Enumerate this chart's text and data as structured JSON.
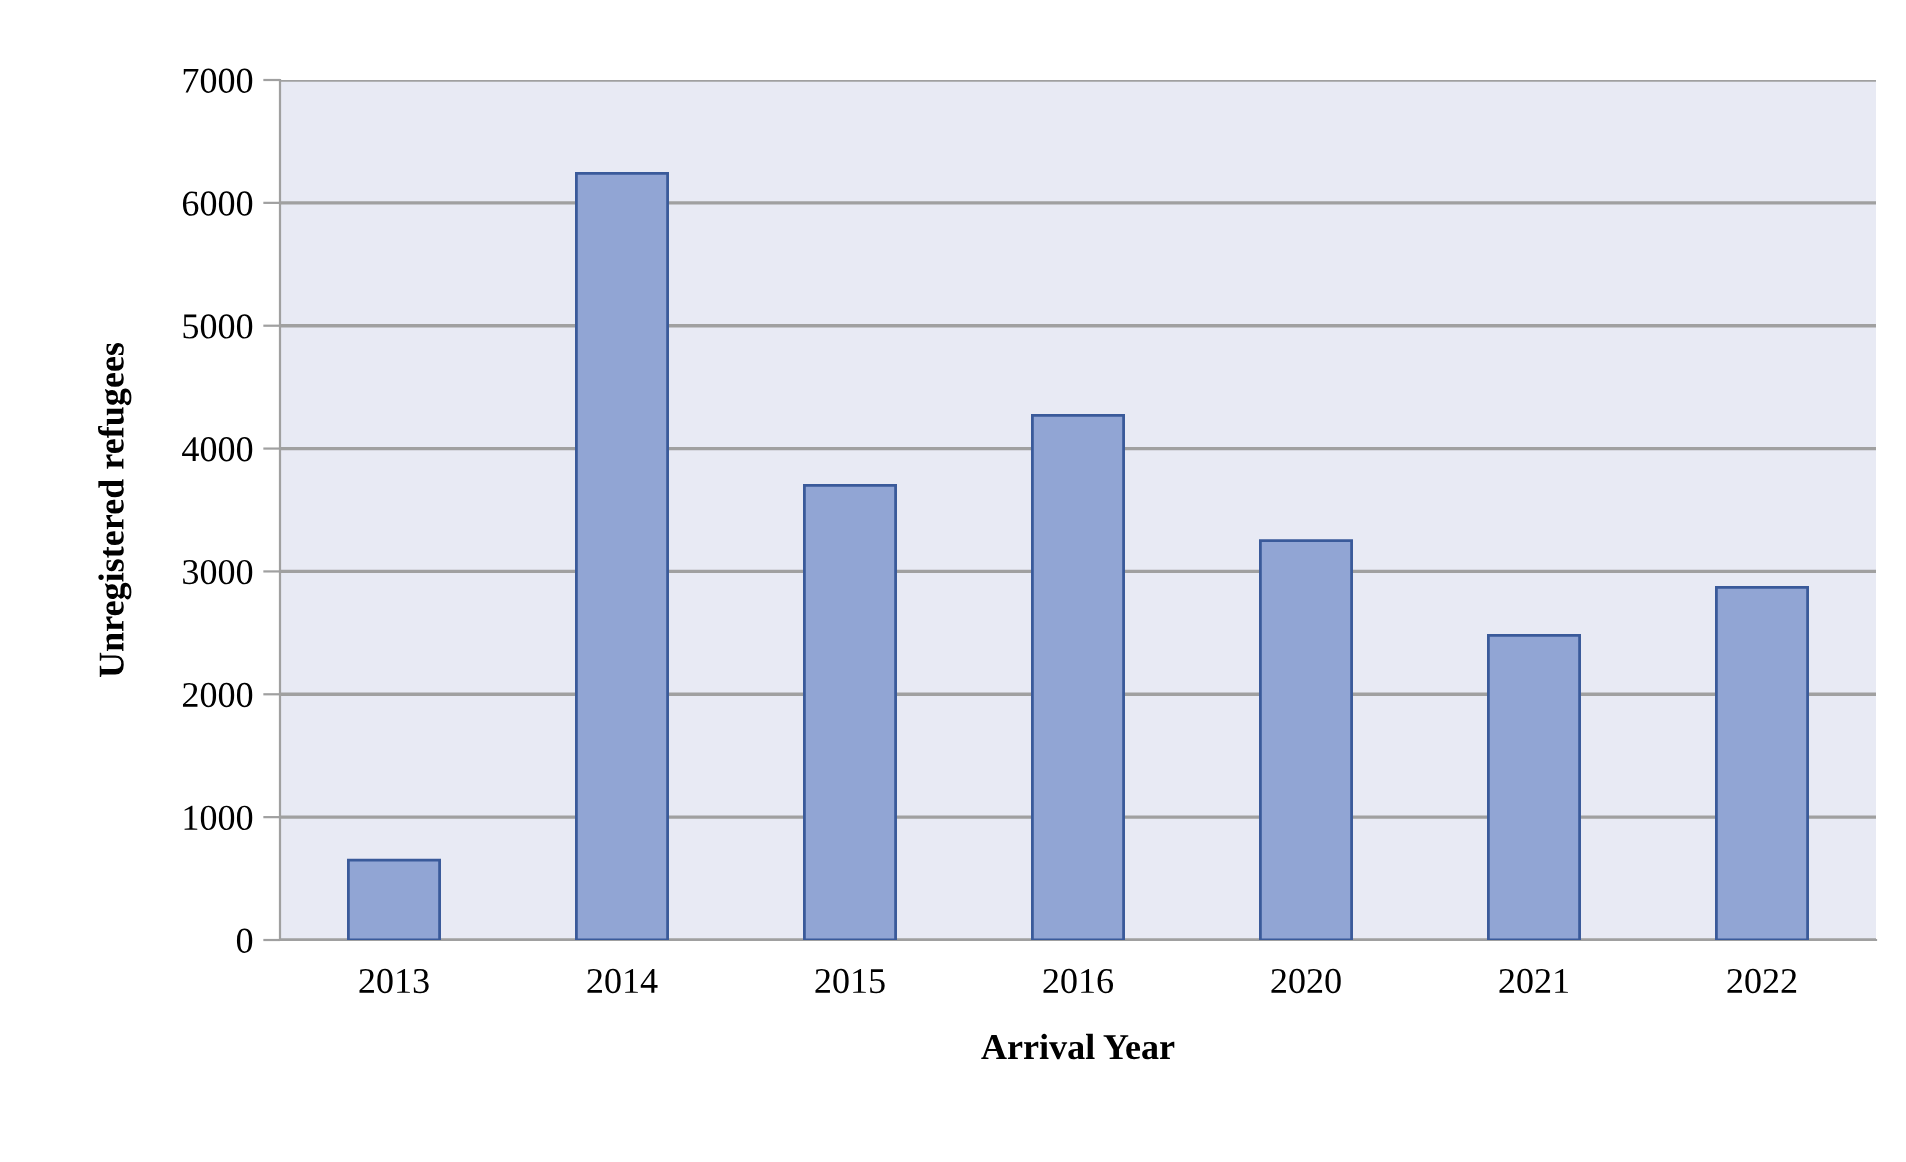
{
  "chart_data": {
    "type": "bar",
    "xlabel": "Arrival Year",
    "ylabel": "Unregistered refugees",
    "categories": [
      "2013",
      "2014",
      "2015",
      "2016",
      "2020",
      "2021",
      "2022"
    ],
    "values": [
      650,
      6240,
      3700,
      4270,
      3250,
      2480,
      2870
    ],
    "color": "#91a5d4",
    "ylim": [
      0,
      7000
    ],
    "yticks": [
      0,
      1000,
      2000,
      3000,
      4000,
      5000,
      6000,
      7000
    ],
    "grid": "y"
  }
}
